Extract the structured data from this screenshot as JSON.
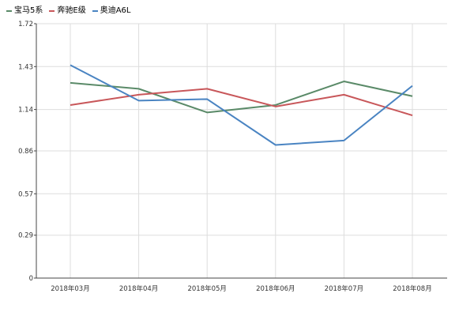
{
  "legend": {
    "items": [
      {
        "label": "宝马5系",
        "color": "#5a8a68"
      },
      {
        "label": "奔驰E级",
        "color": "#c8575a"
      },
      {
        "label": "奥迪A6L",
        "color": "#4a84c2"
      }
    ]
  },
  "chart_data": {
    "type": "line",
    "categories": [
      "2018年03月",
      "2018年04月",
      "2018年05月",
      "2018年06月",
      "2018年07月",
      "2018年08月"
    ],
    "y_ticks": [
      "0",
      "0.29",
      "0.57",
      "0.86",
      "1.14",
      "1.43",
      "1.72"
    ],
    "ylim": [
      0,
      1.72
    ],
    "grid": true,
    "legend_position": "top-left",
    "series": [
      {
        "name": "宝马5系",
        "color": "#5a8a68",
        "values": [
          1.32,
          1.28,
          1.12,
          1.17,
          1.33,
          1.23
        ]
      },
      {
        "name": "奔驰E级",
        "color": "#c8575a",
        "values": [
          1.17,
          1.24,
          1.28,
          1.16,
          1.24,
          1.1
        ]
      },
      {
        "name": "奥迪A6L",
        "color": "#4a84c2",
        "values": [
          1.44,
          1.2,
          1.21,
          0.9,
          0.93,
          1.3
        ]
      }
    ]
  }
}
